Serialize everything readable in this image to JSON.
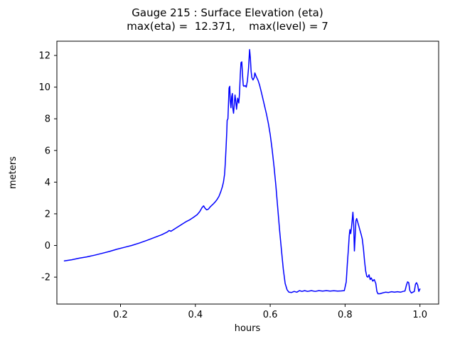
{
  "chart_data": {
    "type": "line",
    "title": "Gauge 215 : Surface Elevation (eta)",
    "subtitle": "max(eta) =  12.371,    max(level) = 7",
    "max_eta": 12.371,
    "max_level": 7,
    "xlabel": "hours",
    "ylabel": "meters",
    "xlim": [
      0.03,
      1.05
    ],
    "ylim": [
      -3.7,
      12.9
    ],
    "xticks": [
      0.2,
      0.4,
      0.6,
      0.8,
      1.0
    ],
    "yticks": [
      -2,
      0,
      2,
      4,
      6,
      8,
      10,
      12
    ],
    "grid": false,
    "legend": "none",
    "line_color": "#0000ff",
    "background_color": "#ffffff",
    "points": [
      [
        0.05,
        -0.97
      ],
      [
        0.07,
        -0.9
      ],
      [
        0.09,
        -0.8
      ],
      [
        0.11,
        -0.72
      ],
      [
        0.13,
        -0.62
      ],
      [
        0.15,
        -0.5
      ],
      [
        0.17,
        -0.38
      ],
      [
        0.19,
        -0.24
      ],
      [
        0.21,
        -0.12
      ],
      [
        0.23,
        0.0
      ],
      [
        0.25,
        0.15
      ],
      [
        0.27,
        0.32
      ],
      [
        0.29,
        0.5
      ],
      [
        0.31,
        0.68
      ],
      [
        0.325,
        0.85
      ],
      [
        0.33,
        0.95
      ],
      [
        0.335,
        0.9
      ],
      [
        0.345,
        1.05
      ],
      [
        0.355,
        1.2
      ],
      [
        0.365,
        1.35
      ],
      [
        0.375,
        1.5
      ],
      [
        0.385,
        1.62
      ],
      [
        0.395,
        1.78
      ],
      [
        0.405,
        1.95
      ],
      [
        0.412,
        2.15
      ],
      [
        0.418,
        2.4
      ],
      [
        0.422,
        2.5
      ],
      [
        0.426,
        2.35
      ],
      [
        0.43,
        2.25
      ],
      [
        0.435,
        2.3
      ],
      [
        0.44,
        2.45
      ],
      [
        0.447,
        2.6
      ],
      [
        0.453,
        2.75
      ],
      [
        0.458,
        2.9
      ],
      [
        0.463,
        3.1
      ],
      [
        0.468,
        3.4
      ],
      [
        0.472,
        3.7
      ],
      [
        0.475,
        4.0
      ],
      [
        0.478,
        4.5
      ],
      [
        0.48,
        5.2
      ],
      [
        0.482,
        6.2
      ],
      [
        0.484,
        7.2
      ],
      [
        0.485,
        7.9
      ],
      [
        0.487,
        8.0
      ],
      [
        0.488,
        8.6
      ],
      [
        0.49,
        9.95
      ],
      [
        0.492,
        10.05
      ],
      [
        0.493,
        9.2
      ],
      [
        0.495,
        8.7
      ],
      [
        0.497,
        9.4
      ],
      [
        0.499,
        9.6
      ],
      [
        0.5,
        8.7
      ],
      [
        0.502,
        8.35
      ],
      [
        0.504,
        8.9
      ],
      [
        0.506,
        9.5
      ],
      [
        0.508,
        9.1
      ],
      [
        0.51,
        8.6
      ],
      [
        0.513,
        9.3
      ],
      [
        0.516,
        9.0
      ],
      [
        0.518,
        9.6
      ],
      [
        0.52,
        10.8
      ],
      [
        0.522,
        11.55
      ],
      [
        0.524,
        11.6
      ],
      [
        0.526,
        10.8
      ],
      [
        0.528,
        10.1
      ],
      [
        0.53,
        10.05
      ],
      [
        0.533,
        10.1
      ],
      [
        0.536,
        10.0
      ],
      [
        0.539,
        10.4
      ],
      [
        0.542,
        11.2
      ],
      [
        0.545,
        12.37
      ],
      [
        0.547,
        11.8
      ],
      [
        0.549,
        11.0
      ],
      [
        0.551,
        10.6
      ],
      [
        0.554,
        10.45
      ],
      [
        0.557,
        10.6
      ],
      [
        0.559,
        10.9
      ],
      [
        0.562,
        10.7
      ],
      [
        0.565,
        10.55
      ],
      [
        0.568,
        10.4
      ],
      [
        0.572,
        10.1
      ],
      [
        0.576,
        9.7
      ],
      [
        0.58,
        9.3
      ],
      [
        0.585,
        8.8
      ],
      [
        0.59,
        8.3
      ],
      [
        0.595,
        7.7
      ],
      [
        0.6,
        7.0
      ],
      [
        0.605,
        6.1
      ],
      [
        0.61,
        5.0
      ],
      [
        0.615,
        3.8
      ],
      [
        0.62,
        2.4
      ],
      [
        0.625,
        1.0
      ],
      [
        0.63,
        -0.3
      ],
      [
        0.635,
        -1.5
      ],
      [
        0.64,
        -2.4
      ],
      [
        0.645,
        -2.8
      ],
      [
        0.65,
        -2.95
      ],
      [
        0.657,
        -2.97
      ],
      [
        0.664,
        -2.9
      ],
      [
        0.671,
        -2.95
      ],
      [
        0.678,
        -2.85
      ],
      [
        0.685,
        -2.9
      ],
      [
        0.692,
        -2.85
      ],
      [
        0.7,
        -2.9
      ],
      [
        0.71,
        -2.85
      ],
      [
        0.72,
        -2.9
      ],
      [
        0.73,
        -2.85
      ],
      [
        0.74,
        -2.88
      ],
      [
        0.75,
        -2.85
      ],
      [
        0.76,
        -2.88
      ],
      [
        0.77,
        -2.86
      ],
      [
        0.78,
        -2.88
      ],
      [
        0.79,
        -2.87
      ],
      [
        0.798,
        -2.85
      ],
      [
        0.803,
        -2.3
      ],
      [
        0.806,
        -1.2
      ],
      [
        0.809,
        -0.2
      ],
      [
        0.811,
        0.6
      ],
      [
        0.813,
        1.0
      ],
      [
        0.815,
        0.75
      ],
      [
        0.817,
        1.1
      ],
      [
        0.819,
        1.6
      ],
      [
        0.821,
        2.1
      ],
      [
        0.823,
        1.3
      ],
      [
        0.825,
        -0.35
      ],
      [
        0.827,
        0.6
      ],
      [
        0.829,
        1.55
      ],
      [
        0.831,
        1.7
      ],
      [
        0.834,
        1.45
      ],
      [
        0.837,
        1.2
      ],
      [
        0.84,
        0.95
      ],
      [
        0.843,
        0.7
      ],
      [
        0.846,
        0.4
      ],
      [
        0.849,
        -0.2
      ],
      [
        0.852,
        -1.0
      ],
      [
        0.855,
        -1.6
      ],
      [
        0.858,
        -1.95
      ],
      [
        0.861,
        -2.0
      ],
      [
        0.864,
        -1.85
      ],
      [
        0.867,
        -2.15
      ],
      [
        0.87,
        -2.05
      ],
      [
        0.874,
        -2.25
      ],
      [
        0.878,
        -2.15
      ],
      [
        0.882,
        -2.4
      ],
      [
        0.885,
        -2.9
      ],
      [
        0.888,
        -3.05
      ],
      [
        0.893,
        -3.05
      ],
      [
        0.9,
        -3.0
      ],
      [
        0.908,
        -2.95
      ],
      [
        0.916,
        -2.97
      ],
      [
        0.924,
        -2.92
      ],
      [
        0.932,
        -2.95
      ],
      [
        0.94,
        -2.92
      ],
      [
        0.948,
        -2.95
      ],
      [
        0.955,
        -2.9
      ],
      [
        0.96,
        -2.88
      ],
      [
        0.964,
        -2.5
      ],
      [
        0.967,
        -2.3
      ],
      [
        0.97,
        -2.35
      ],
      [
        0.973,
        -2.85
      ],
      [
        0.977,
        -3.0
      ],
      [
        0.981,
        -2.95
      ],
      [
        0.985,
        -2.9
      ],
      [
        0.988,
        -2.45
      ],
      [
        0.991,
        -2.35
      ],
      [
        0.994,
        -2.5
      ],
      [
        0.997,
        -2.9
      ],
      [
        1.0,
        -2.75
      ]
    ]
  }
}
